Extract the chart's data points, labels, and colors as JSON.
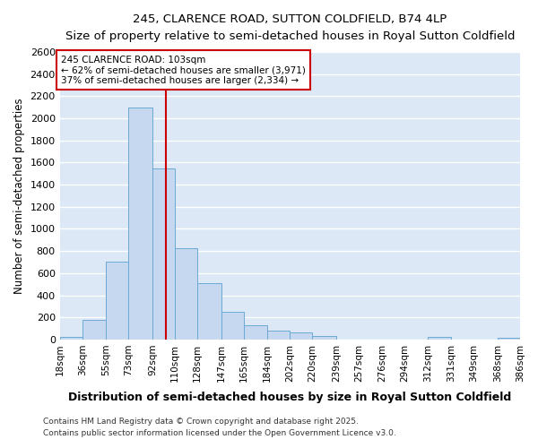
{
  "title": "245, CLARENCE ROAD, SUTTON COLDFIELD, B74 4LP",
  "subtitle": "Size of property relative to semi-detached houses in Royal Sutton Coldfield",
  "xlabel": "Distribution of semi-detached houses by size in Royal Sutton Coldfield",
  "ylabel": "Number of semi-detached properties",
  "footnote1": "Contains HM Land Registry data © Crown copyright and database right 2025.",
  "footnote2": "Contains public sector information licensed under the Open Government Licence v3.0.",
  "property_label": "245 CLARENCE ROAD: 103sqm",
  "pct_smaller": 62,
  "pct_larger": 37,
  "n_smaller": 3971,
  "n_larger": 2334,
  "bar_edges": [
    18,
    36,
    55,
    73,
    92,
    110,
    128,
    147,
    165,
    184,
    202,
    220,
    239,
    257,
    276,
    294,
    312,
    331,
    349,
    368,
    386
  ],
  "bar_heights": [
    20,
    175,
    700,
    2100,
    1550,
    825,
    510,
    250,
    125,
    80,
    60,
    30,
    0,
    0,
    0,
    0,
    20,
    0,
    0,
    15,
    0
  ],
  "bar_color": "#c5d8f0",
  "bar_edge_color": "#6aaad4",
  "vline_x": 103,
  "vline_color": "#cc0000",
  "annotation_box_color": "#cc0000",
  "plot_bg_color": "#dce8f5",
  "fig_bg_color": "#ffffff",
  "grid_color": "#ffffff",
  "ylim": [
    0,
    2600
  ],
  "yticks": [
    0,
    200,
    400,
    600,
    800,
    1000,
    1200,
    1400,
    1600,
    1800,
    2000,
    2200,
    2400,
    2600
  ]
}
